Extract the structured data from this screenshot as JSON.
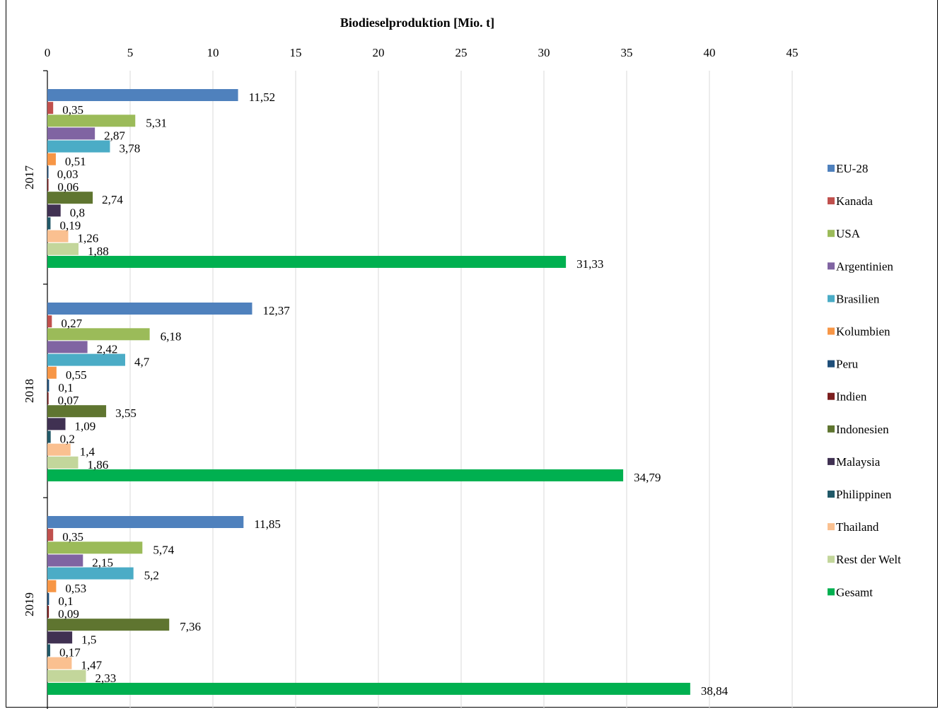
{
  "chart_data": {
    "type": "bar",
    "orientation": "horizontal",
    "title": "Biodieselproduktion [Mio.  t]",
    "xlim": [
      0,
      45
    ],
    "x_ticks": [
      0,
      5,
      10,
      15,
      20,
      25,
      30,
      35,
      40,
      45
    ],
    "grid": "vertical",
    "legend_position": "right",
    "categories": [
      "2017",
      "2018",
      "2019"
    ],
    "series": [
      {
        "name": "EU-28",
        "color": "#4f81bd",
        "values": [
          11.52,
          12.37,
          11.85
        ],
        "labels": [
          "11,52",
          "12,37",
          "11,85"
        ]
      },
      {
        "name": "Kanada",
        "color": "#c0504d",
        "values": [
          0.35,
          0.27,
          0.35
        ],
        "labels": [
          "0,35",
          "0,27",
          "0,35"
        ]
      },
      {
        "name": "USA",
        "color": "#9bbb59",
        "values": [
          5.31,
          6.18,
          5.74
        ],
        "labels": [
          "5,31",
          "6,18",
          "5,74"
        ]
      },
      {
        "name": "Argentinien",
        "color": "#8064a2",
        "values": [
          2.87,
          2.42,
          2.15
        ],
        "labels": [
          "2,87",
          "2,42",
          "2,15"
        ]
      },
      {
        "name": "Brasilien",
        "color": "#4bacc6",
        "values": [
          3.78,
          4.7,
          5.2
        ],
        "labels": [
          "3,78",
          "4,7",
          "5,2"
        ]
      },
      {
        "name": "Kolumbien",
        "color": "#f79646",
        "values": [
          0.51,
          0.55,
          0.53
        ],
        "labels": [
          "0,51",
          "0,55",
          "0,53"
        ]
      },
      {
        "name": "Peru",
        "color": "#1f4e79",
        "values": [
          0.03,
          0.1,
          0.1
        ],
        "labels": [
          "0,03",
          "0,1",
          "0,1"
        ]
      },
      {
        "name": "Indien",
        "color": "#7b1e1e",
        "values": [
          0.06,
          0.07,
          0.09
        ],
        "labels": [
          "0,06",
          "0,07",
          "0,09"
        ]
      },
      {
        "name": "Indonesien",
        "color": "#5f7530",
        "values": [
          2.74,
          3.55,
          7.36
        ],
        "labels": [
          "2,74",
          "3,55",
          "7,36"
        ]
      },
      {
        "name": "Malaysia",
        "color": "#403152",
        "values": [
          0.8,
          1.09,
          1.5
        ],
        "labels": [
          "0,8",
          "1,09",
          "1,5"
        ]
      },
      {
        "name": "Philippinen",
        "color": "#215968",
        "values": [
          0.19,
          0.2,
          0.17
        ],
        "labels": [
          "0,19",
          "0,2",
          "0,17"
        ]
      },
      {
        "name": "Thailand",
        "color": "#fac090",
        "values": [
          1.26,
          1.4,
          1.47
        ],
        "labels": [
          "1,26",
          "1,4",
          "1,47"
        ]
      },
      {
        "name": "Rest der Welt",
        "color": "#c3d69b",
        "values": [
          1.88,
          1.86,
          2.33
        ],
        "labels": [
          "1,88",
          "1,86",
          "2,33"
        ]
      },
      {
        "name": "Gesamt",
        "color": "#00b050",
        "values": [
          31.33,
          34.79,
          38.84
        ],
        "labels": [
          "31,33",
          "34,79",
          "38,84"
        ]
      }
    ]
  }
}
